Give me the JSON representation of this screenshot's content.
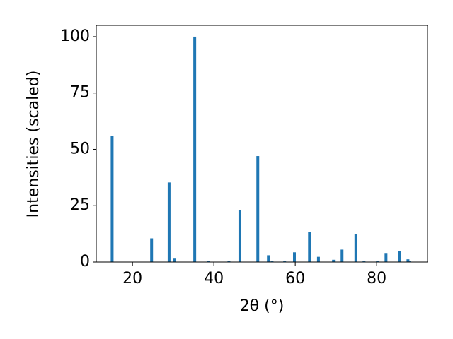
{
  "chart_data": {
    "type": "bar",
    "xlabel": "2θ (°)",
    "ylabel": "Intensities (scaled)",
    "x": [
      15.0,
      24.7,
      29.0,
      30.4,
      35.3,
      38.6,
      43.7,
      46.4,
      50.8,
      53.4,
      54.3,
      57.4,
      59.8,
      63.5,
      65.7,
      69.4,
      71.5,
      74.9,
      76.9,
      80.2,
      82.3,
      85.6,
      87.7,
      88.0
    ],
    "values": [
      56,
      10.5,
      35.3,
      1.5,
      100,
      0.6,
      0.6,
      23,
      47,
      3,
      0.3,
      0.3,
      4.3,
      13.3,
      2.3,
      1,
      5.5,
      12.3,
      0.3,
      0.5,
      4,
      5,
      1.2,
      0.3
    ],
    "color": "#1f77b4",
    "xlim": [
      11.1,
      92.5
    ],
    "xticks": [
      20,
      40,
      60,
      80
    ],
    "ylim": [
      0,
      105
    ],
    "yticks": [
      0,
      25,
      50,
      75,
      100
    ],
    "grid": false
  }
}
